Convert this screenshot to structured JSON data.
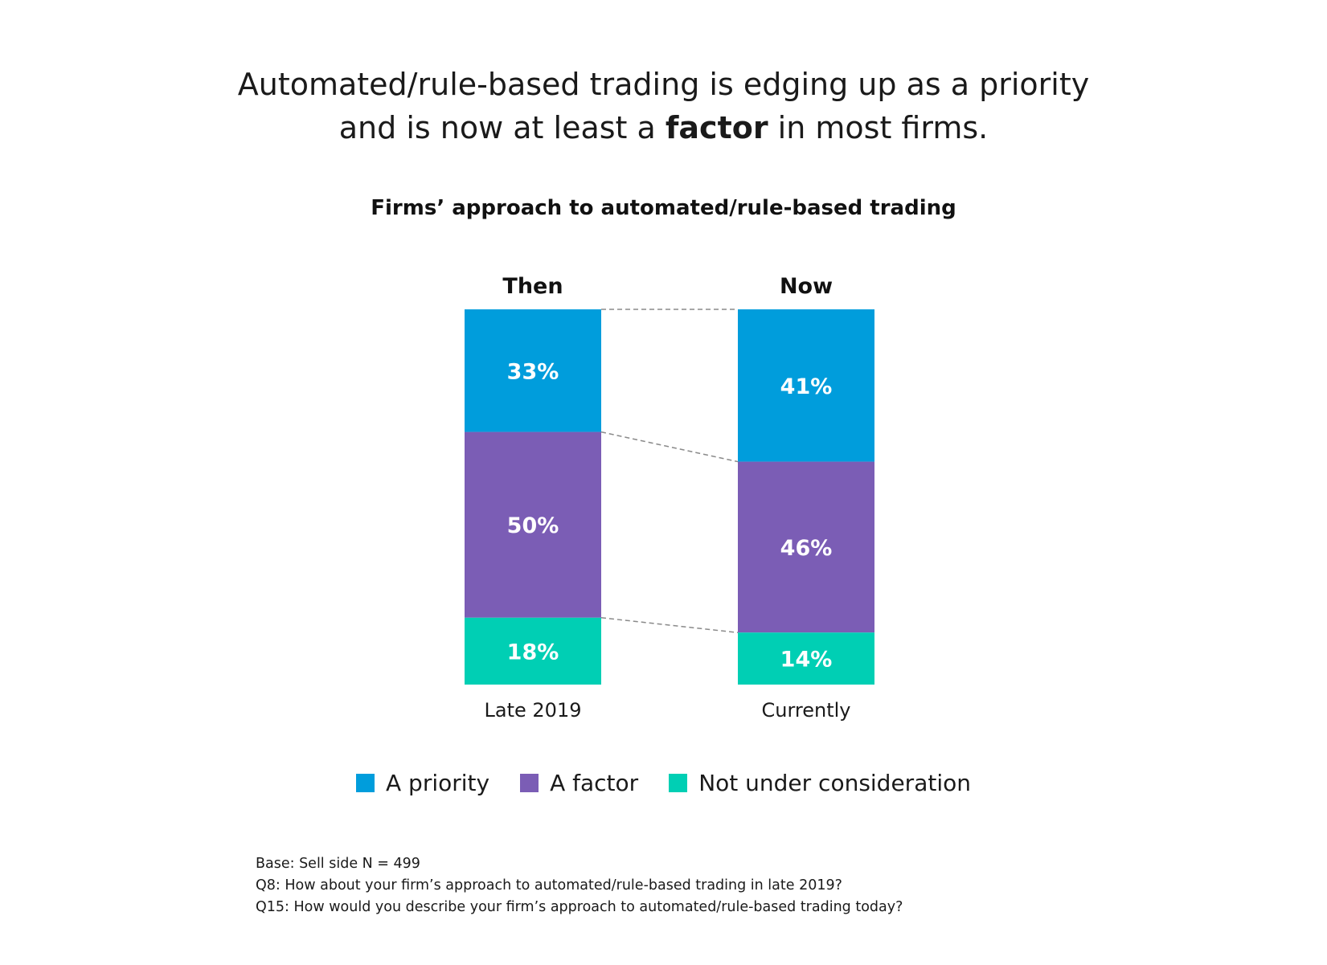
{
  "headline": {
    "line1": "Automated/rule-based trading is edging up as a priority",
    "line2_before": "and is now at least a ",
    "line2_bold": "factor",
    "line2_after": " in most firms."
  },
  "chart_data": {
    "type": "bar",
    "stacked": true,
    "title": "Firms’ approach to automated/rule-based trading",
    "categories": [
      "Late 2019",
      "Currently"
    ],
    "column_headers": [
      "Then",
      "Now"
    ],
    "series": [
      {
        "name": "A priority",
        "values": [
          33,
          41
        ],
        "labels": [
          "33%",
          "41%"
        ],
        "color": "#009ddc"
      },
      {
        "name": "A factor",
        "values": [
          50,
          46
        ],
        "labels": [
          "50%",
          "46%"
        ],
        "color": "#7b5db5"
      },
      {
        "name": "Not under consideration",
        "values": [
          18,
          14
        ],
        "labels": [
          "18%",
          "14%"
        ],
        "color": "#00cfb4"
      }
    ],
    "connector_lines": true
  },
  "notes": [
    "Base: Sell side N = 499",
    "Q8: How about your firm’s approach to automated/rule-based trading in late 2019?",
    "Q15: How would you describe your firm’s approach to automated/rule-based trading today?"
  ]
}
